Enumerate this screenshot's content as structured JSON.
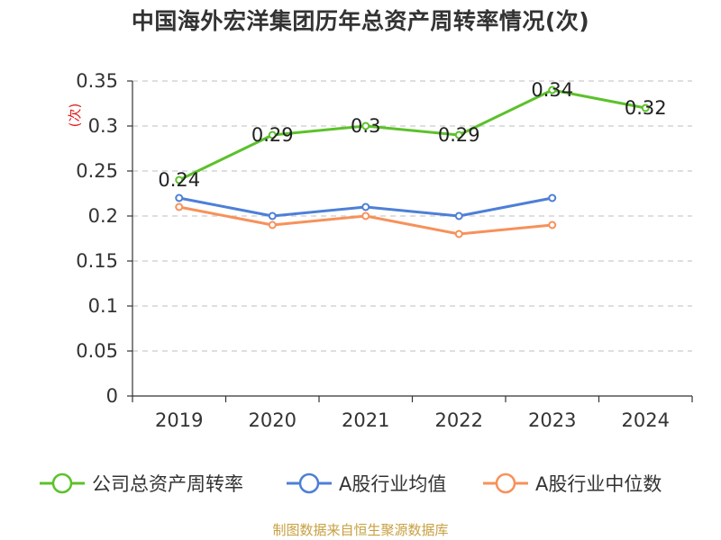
{
  "chart_data": {
    "type": "line",
    "title": "中国海外宏洋集团历年总资产周转率情况(次)",
    "ylabel": "(次)",
    "categories": [
      "2019",
      "2020",
      "2021",
      "2022",
      "2023",
      "2024"
    ],
    "ylim": [
      0,
      0.35
    ],
    "yticks": [
      "0",
      "0.05",
      "0.1",
      "0.15",
      "0.2",
      "0.25",
      "0.3",
      "0.35"
    ],
    "grid": true,
    "legend_position": "bottom",
    "series": [
      {
        "name": "公司总资产周转率",
        "color": "#5cc12b",
        "values": [
          0.24,
          0.29,
          0.3,
          0.29,
          0.34,
          0.32
        ],
        "labels": [
          "0.24",
          "0.29",
          "0.3",
          "0.29",
          "0.34",
          "0.32"
        ]
      },
      {
        "name": "A股行业均值",
        "color": "#4d7fd6",
        "values": [
          0.22,
          0.2,
          0.21,
          0.2,
          0.22,
          null
        ]
      },
      {
        "name": "A股行业中位数",
        "color": "#f7915a",
        "values": [
          0.21,
          0.19,
          0.2,
          0.18,
          0.19,
          null
        ]
      }
    ]
  },
  "footer": {
    "source": "制图数据来自恒生聚源数据库"
  }
}
